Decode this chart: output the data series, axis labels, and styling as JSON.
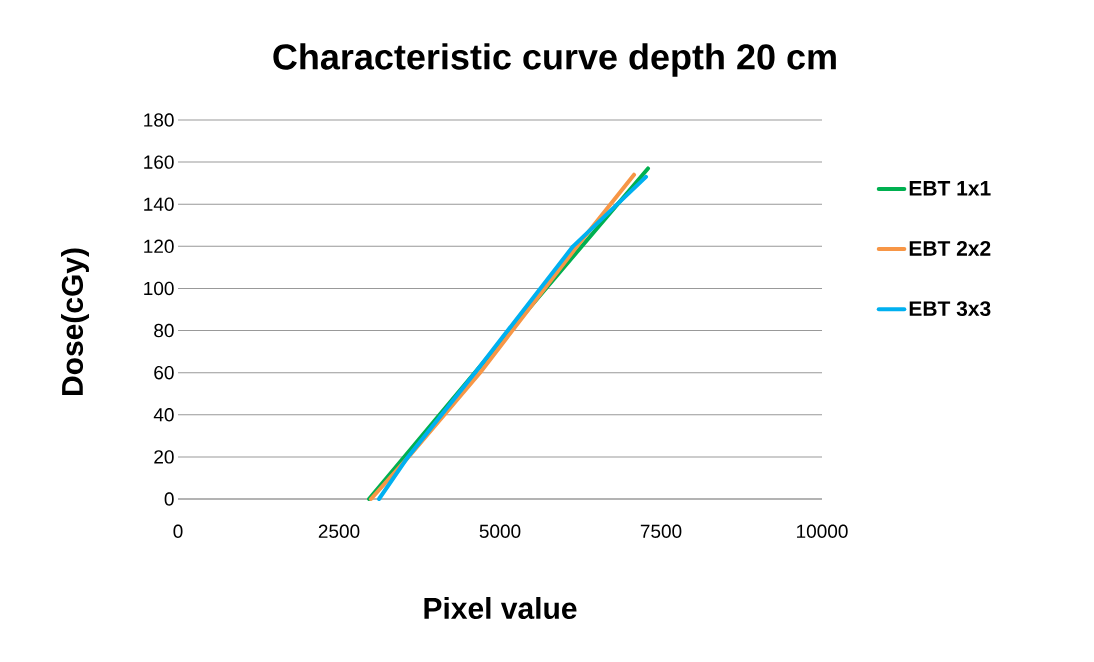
{
  "chart_data": {
    "type": "line",
    "title": "Characteristic curve depth 20 cm",
    "xlabel": "Pixel value",
    "ylabel": "Dose(cGy)",
    "xlim": [
      0,
      10000
    ],
    "xticks": [
      0,
      2500,
      5000,
      7500,
      10000
    ],
    "ylim": [
      0,
      180
    ],
    "yticks": [
      0,
      20,
      40,
      60,
      80,
      100,
      120,
      140,
      160,
      180
    ],
    "grid": "y",
    "legend": "right",
    "marker": "none",
    "line_style": "solid",
    "series": [
      {
        "name": "EBT 1x1",
        "color": "#00b050",
        "x": [
          2966,
          5130,
          7298
        ],
        "values": [
          0,
          79,
          157
        ]
      },
      {
        "name": "EBT 2x2",
        "color": "#f79646",
        "x": [
          2997,
          3580,
          4690,
          6196,
          7081
        ],
        "values": [
          0,
          20,
          60,
          120,
          154
        ]
      },
      {
        "name": "EBT 3x3",
        "color": "#00b0f0",
        "x": [
          3121,
          3571,
          4612,
          6134,
          7267
        ],
        "values": [
          0,
          20,
          60,
          120,
          153
        ]
      }
    ]
  }
}
